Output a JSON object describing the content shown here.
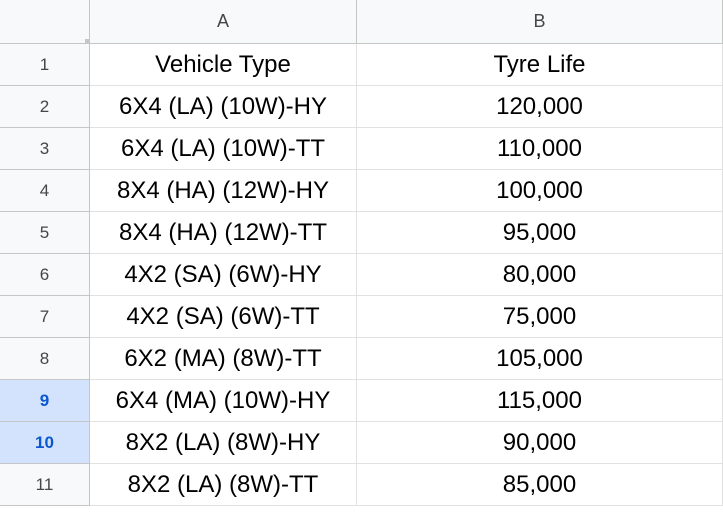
{
  "columns": [
    "A",
    "B"
  ],
  "rows": [
    {
      "num": "1",
      "a": "Vehicle Type",
      "b": "Tyre Life",
      "selected": false
    },
    {
      "num": "2",
      "a": "6X4 (LA) (10W)-HY",
      "b": "120,000",
      "selected": false
    },
    {
      "num": "3",
      "a": "6X4 (LA) (10W)-TT",
      "b": "110,000",
      "selected": false
    },
    {
      "num": "4",
      "a": "8X4 (HA) (12W)-HY",
      "b": "100,000",
      "selected": false
    },
    {
      "num": "5",
      "a": "8X4 (HA) (12W)-TT",
      "b": "95,000",
      "selected": false
    },
    {
      "num": "6",
      "a": "4X2 (SA) (6W)-HY",
      "b": "80,000",
      "selected": false
    },
    {
      "num": "7",
      "a": "4X2 (SA) (6W)-TT",
      "b": "75,000",
      "selected": false
    },
    {
      "num": "8",
      "a": "6X2 (MA) (8W)-TT",
      "b": "105,000",
      "selected": false
    },
    {
      "num": "9",
      "a": "6X4 (MA) (10W)-HY",
      "b": "115,000",
      "selected": true
    },
    {
      "num": "10",
      "a": "8X2 (LA) (8W)-HY",
      "b": "90,000",
      "selected": true
    },
    {
      "num": "11",
      "a": "8X2 (LA) (8W)-TT",
      "b": "85,000",
      "selected": false
    }
  ]
}
